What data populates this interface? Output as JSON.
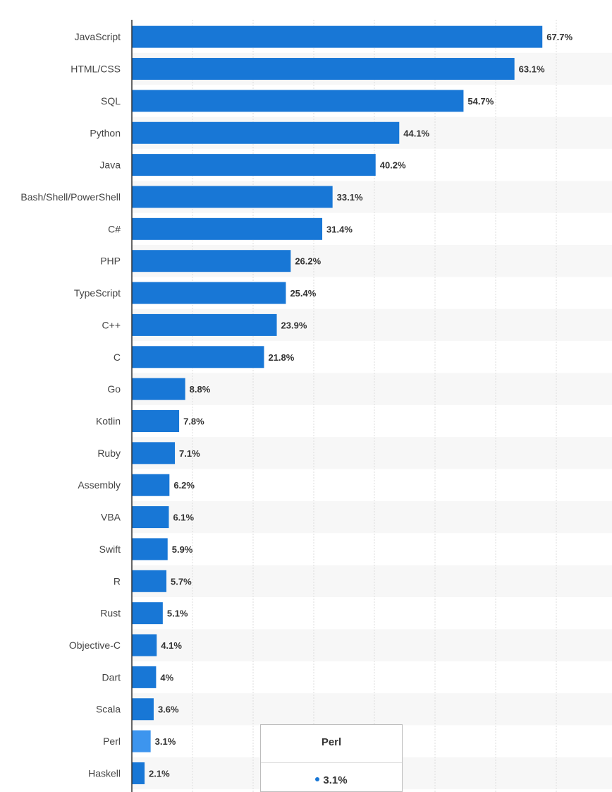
{
  "chart_data": {
    "type": "bar",
    "orientation": "horizontal",
    "categories": [
      "JavaScript",
      "HTML/CSS",
      "SQL",
      "Python",
      "Java",
      "Bash/Shell/PowerShell",
      "C#",
      "PHP",
      "TypeScript",
      "C++",
      "C",
      "Go",
      "Kotlin",
      "Ruby",
      "Assembly",
      "VBA",
      "Swift",
      "R",
      "Rust",
      "Objective-C",
      "Dart",
      "Scala",
      "Perl",
      "Haskell"
    ],
    "values": [
      67.7,
      63.1,
      54.7,
      44.1,
      40.2,
      33.1,
      31.4,
      26.2,
      25.4,
      23.9,
      21.8,
      8.8,
      7.8,
      7.1,
      6.2,
      6.1,
      5.9,
      5.7,
      5.1,
      4.1,
      4,
      3.6,
      3.1,
      2.1
    ],
    "value_labels": [
      "67.7%",
      "63.1%",
      "54.7%",
      "44.1%",
      "40.2%",
      "33.1%",
      "31.4%",
      "26.2%",
      "25.4%",
      "23.9%",
      "21.8%",
      "8.8%",
      "7.8%",
      "7.1%",
      "6.2%",
      "6.1%",
      "5.9%",
      "5.7%",
      "5.1%",
      "4.1%",
      "4%",
      "3.6%",
      "3.1%",
      "2.1%"
    ],
    "unit": "%",
    "xlim": [
      0,
      80
    ],
    "grid": true,
    "highlighted_category": "Perl",
    "colors": {
      "bar": "#1877d6",
      "highlight": "#3d95ee",
      "grid": "#dddddd",
      "stripe": "#f7f7f7"
    }
  },
  "tooltip": {
    "title": "Perl",
    "value": "3.1%"
  }
}
